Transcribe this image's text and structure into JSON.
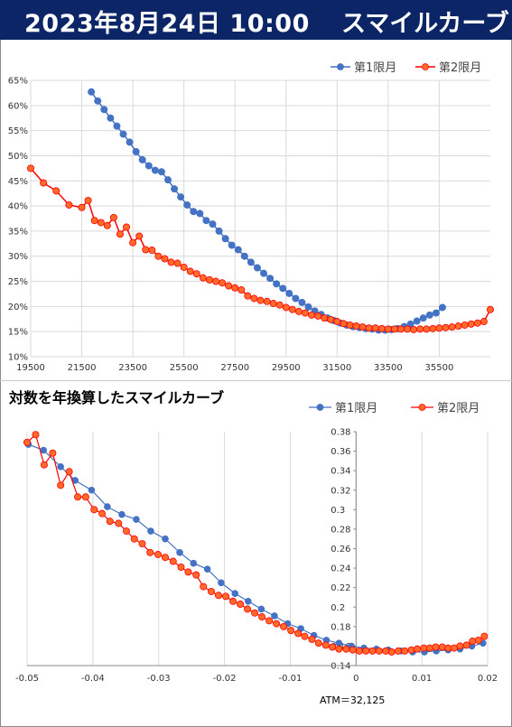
{
  "header": {
    "date": "2023年8月24日 10:00",
    "title": "スマイルカーブ"
  },
  "colors": {
    "header_bg": "#0b2566",
    "series1": "#4472c4",
    "series2": "#ff0000",
    "series2_fill": "#ff6a2b",
    "grid": "#d9d9d9"
  },
  "chart_data": [
    {
      "type": "line",
      "title": "",
      "xlabel": "",
      "ylabel": "",
      "xlim": [
        19500,
        37500
      ],
      "ylim": [
        0.1,
        0.65
      ],
      "x_ticks": [
        "19500",
        "21500",
        "23500",
        "25500",
        "27500",
        "29500",
        "31500",
        "33500",
        "35500"
      ],
      "y_ticks": [
        "10%",
        "15%",
        "20%",
        "25%",
        "30%",
        "35%",
        "40%",
        "45%",
        "50%",
        "55%",
        "60%",
        "65%"
      ],
      "legend": "top-right",
      "series": [
        {
          "name": "第1限月",
          "x": [
            21875,
            22125,
            22375,
            22625,
            22875,
            23125,
            23375,
            23625,
            23875,
            24125,
            24375,
            24625,
            24875,
            25125,
            25375,
            25625,
            25875,
            26125,
            26375,
            26625,
            26875,
            27125,
            27375,
            27625,
            27875,
            28125,
            28375,
            28625,
            28875,
            29125,
            29375,
            29625,
            29875,
            30125,
            30375,
            30625,
            30875,
            31125,
            31375,
            31625,
            31875,
            32125,
            32375,
            32625,
            32875,
            33125,
            33375,
            33625,
            33875,
            34125,
            34375,
            34625,
            34875,
            35125,
            35375,
            35625
          ],
          "y": [
            0.627,
            0.609,
            0.592,
            0.575,
            0.559,
            0.543,
            0.527,
            0.508,
            0.492,
            0.48,
            0.471,
            0.468,
            0.452,
            0.434,
            0.418,
            0.402,
            0.389,
            0.385,
            0.371,
            0.364,
            0.35,
            0.335,
            0.322,
            0.313,
            0.3,
            0.288,
            0.277,
            0.266,
            0.256,
            0.245,
            0.236,
            0.226,
            0.216,
            0.208,
            0.199,
            0.191,
            0.184,
            0.177,
            0.172,
            0.167,
            0.163,
            0.16,
            0.158,
            0.156,
            0.155,
            0.153,
            0.153,
            0.154,
            0.156,
            0.16,
            0.165,
            0.171,
            0.177,
            0.183,
            0.187,
            0.198
          ]
        },
        {
          "name": "第2限月",
          "x": [
            19500,
            20000,
            20500,
            21000,
            21500,
            21750,
            22000,
            22250,
            22500,
            22750,
            23000,
            23250,
            23500,
            23750,
            24000,
            24250,
            24500,
            24750,
            25000,
            25250,
            25500,
            25750,
            26000,
            26250,
            26500,
            26750,
            27000,
            27250,
            27500,
            27750,
            28000,
            28250,
            28500,
            28750,
            29000,
            29250,
            29500,
            29750,
            30000,
            30250,
            30500,
            30750,
            31000,
            31250,
            31500,
            31750,
            32000,
            32250,
            32500,
            32750,
            33000,
            33250,
            33500,
            33750,
            34000,
            34250,
            34500,
            34750,
            35000,
            35250,
            35500,
            35750,
            36000,
            36250,
            36500,
            36750,
            37000,
            37250,
            37500
          ],
          "y": [
            0.475,
            0.446,
            0.43,
            0.402,
            0.397,
            0.411,
            0.371,
            0.367,
            0.361,
            0.377,
            0.344,
            0.358,
            0.327,
            0.34,
            0.313,
            0.312,
            0.3,
            0.295,
            0.288,
            0.286,
            0.278,
            0.27,
            0.265,
            0.257,
            0.253,
            0.25,
            0.247,
            0.241,
            0.237,
            0.233,
            0.221,
            0.216,
            0.212,
            0.21,
            0.206,
            0.203,
            0.198,
            0.194,
            0.19,
            0.187,
            0.183,
            0.181,
            0.177,
            0.174,
            0.17,
            0.166,
            0.163,
            0.161,
            0.159,
            0.157,
            0.157,
            0.156,
            0.155,
            0.155,
            0.155,
            0.155,
            0.154,
            0.155,
            0.155,
            0.156,
            0.157,
            0.158,
            0.159,
            0.161,
            0.163,
            0.165,
            0.167,
            0.17,
            0.194
          ]
        }
      ]
    },
    {
      "type": "scatter",
      "title": "対数を年換算したスマイルカーブ",
      "xlabel": "",
      "ylabel": "",
      "xlim": [
        -0.05,
        0.02
      ],
      "ylim": [
        0.14,
        0.38
      ],
      "x_ticks": [
        "-0.05",
        "-0.04",
        "-0.03",
        "-0.02",
        "-0.01",
        "0",
        "0.01",
        "0.02"
      ],
      "y_ticks": [
        "0.14",
        "0.16",
        "0.18",
        "0.2",
        "0.22",
        "0.24",
        "0.26",
        "0.28",
        "0.3",
        "0.32",
        "0.34",
        "0.36",
        "0.38"
      ],
      "legend": "top-right",
      "annotation": "ATM＝32,125",
      "series": [
        {
          "name": "第1限月",
          "x": [
            -0.0498,
            -0.0475,
            -0.0449,
            -0.0427,
            -0.0402,
            -0.0378,
            -0.0356,
            -0.0334,
            -0.0312,
            -0.029,
            -0.0268,
            -0.0247,
            -0.0226,
            -0.0205,
            -0.0184,
            -0.0164,
            -0.0144,
            -0.0124,
            -0.0104,
            -0.0084,
            -0.0064,
            -0.0045,
            -0.0026,
            -0.0007,
            0.0012,
            0.0031,
            0.0049,
            0.0068,
            0.0086,
            0.0104,
            0.0122,
            0.014,
            0.0158,
            0.0176,
            0.0193
          ],
          "y": [
            0.367,
            0.361,
            0.344,
            0.33,
            0.32,
            0.303,
            0.295,
            0.29,
            0.278,
            0.27,
            0.256,
            0.245,
            0.239,
            0.225,
            0.214,
            0.206,
            0.198,
            0.191,
            0.183,
            0.178,
            0.171,
            0.166,
            0.163,
            0.16,
            0.158,
            0.157,
            0.156,
            0.155,
            0.154,
            0.154,
            0.155,
            0.156,
            0.157,
            0.16,
            0.163
          ]
        },
        {
          "name": "第2限月",
          "x": [
            -0.05,
            -0.0487,
            -0.0474,
            -0.0461,
            -0.0449,
            -0.0436,
            -0.0423,
            -0.0411,
            -0.0398,
            -0.0386,
            -0.0374,
            -0.0361,
            -0.0349,
            -0.0337,
            -0.0325,
            -0.0313,
            -0.0301,
            -0.029,
            -0.0278,
            -0.0266,
            -0.0255,
            -0.0243,
            -0.0232,
            -0.022,
            -0.0209,
            -0.0198,
            -0.0187,
            -0.0176,
            -0.0165,
            -0.0154,
            -0.0143,
            -0.0132,
            -0.0121,
            -0.011,
            -0.0099,
            -0.0088,
            -0.0078,
            -0.0067,
            -0.0057,
            -0.0046,
            -0.0036,
            -0.0026,
            -0.0015,
            -0.0005,
            0.0005,
            0.0015,
            0.0025,
            0.0035,
            0.0045,
            0.0054,
            0.0064,
            0.0074,
            0.0084,
            0.0093,
            0.0103,
            0.0112,
            0.0121,
            0.0131,
            0.014,
            0.0149,
            0.0158,
            0.0168,
            0.0177,
            0.0186,
            0.0195
          ],
          "y": [
            0.369,
            0.377,
            0.346,
            0.358,
            0.325,
            0.339,
            0.313,
            0.313,
            0.3,
            0.296,
            0.288,
            0.286,
            0.278,
            0.27,
            0.265,
            0.256,
            0.254,
            0.251,
            0.247,
            0.241,
            0.236,
            0.233,
            0.221,
            0.216,
            0.212,
            0.211,
            0.206,
            0.203,
            0.198,
            0.194,
            0.19,
            0.186,
            0.183,
            0.18,
            0.176,
            0.173,
            0.17,
            0.167,
            0.163,
            0.161,
            0.159,
            0.157,
            0.157,
            0.156,
            0.155,
            0.155,
            0.155,
            0.155,
            0.155,
            0.154,
            0.155,
            0.155,
            0.156,
            0.157,
            0.158,
            0.158,
            0.159,
            0.159,
            0.158,
            0.158,
            0.16,
            0.161,
            0.165,
            0.166,
            0.17
          ]
        }
      ]
    }
  ]
}
